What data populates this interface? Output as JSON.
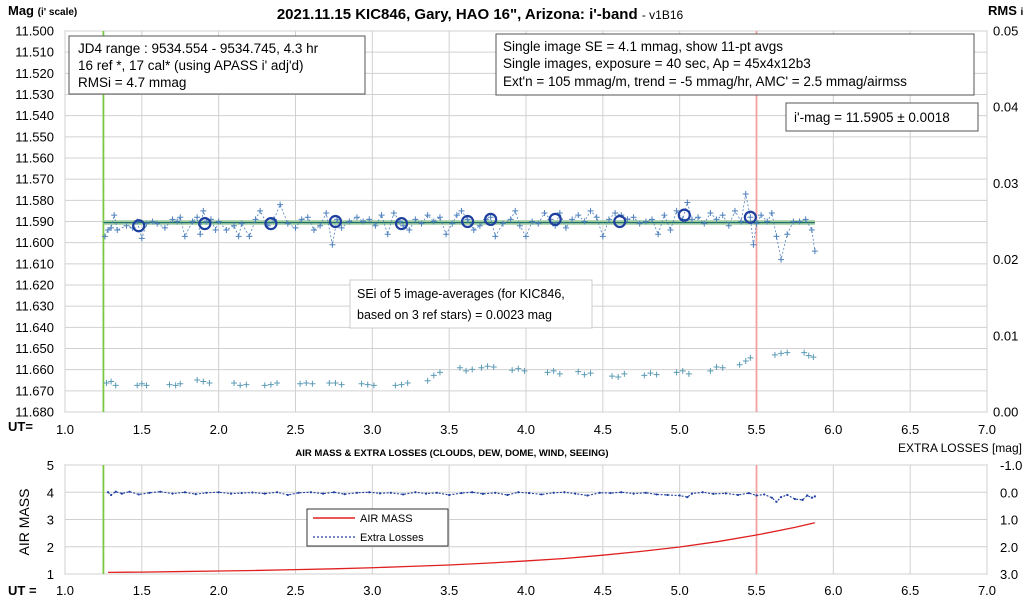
{
  "chart_data": [
    {
      "type": "scatter",
      "title": "2021.11.15 KIC846, Gary, HAO 16\", Arizona: i'-band",
      "title_suffix": "- v1B16",
      "ylabel": "Mag",
      "ylabel_small": "(i' scale)",
      "y2label": "RMS",
      "y2label_small": "i",
      "xlabel": "UT=",
      "xlim": [
        1.0,
        7.0
      ],
      "ylim": [
        11.5,
        11.68
      ],
      "ylim_reversed": true,
      "y2lim": [
        0.0,
        0.05
      ],
      "x_ticks": [
        "1.0",
        "1.5",
        "2.0",
        "2.5",
        "3.0",
        "3.5",
        "4.0",
        "4.5",
        "5.0",
        "5.5",
        "6.0",
        "6.5",
        "7.0"
      ],
      "y_ticks": [
        "11.500",
        "11.510",
        "11.520",
        "11.530",
        "11.540",
        "11.550",
        "11.560",
        "11.570",
        "11.580",
        "11.590",
        "11.600",
        "11.610",
        "11.620",
        "11.630",
        "11.640",
        "11.650",
        "11.660",
        "11.670",
        "11.680"
      ],
      "y2_ticks": [
        "0.05",
        "0.04",
        "0.03",
        "0.02",
        "0.01",
        "0.00"
      ],
      "grid": true,
      "vertical_lines": [
        {
          "x": 1.25,
          "color": "#7ac943"
        },
        {
          "x": 5.5,
          "color": "#f4a0a0"
        }
      ],
      "annotations": {
        "left_box": [
          "JD4 range : 9534.554 - 9534.745, 4.3  hr",
          "16 ref *, 17 cal* (using APASS i' adj'd)",
          "RMSi = 4.7 mmag"
        ],
        "right_box": [
          "Single image SE = 4.1 mmag, show 11-pt avgs",
          "Single images, exposure = 40 sec, Ap = 45x4x12b3",
          "Ext'n = 105 mmag/m, trend = -5 mmag/hr, AMC' = 2.5 mmag/airmss"
        ],
        "mag_box": "i'-mag = 11.5905 ± 0.0018",
        "sei_box": [
          "SEi of 5 image-averages (for KIC846,",
          "based on 3 ref stars) = 0.0023 mag"
        ]
      },
      "fit_line": {
        "x": [
          1.25,
          5.88
        ],
        "y": [
          11.5905,
          11.5905
        ],
        "colors": [
          "#9bc99b",
          "#1f6f6f"
        ]
      },
      "series": [
        {
          "name": "single images",
          "color": "#4f81bd",
          "marker": "+",
          "x": [
            1.26,
            1.28,
            1.3,
            1.32,
            1.34,
            1.4,
            1.44,
            1.47,
            1.5,
            1.53,
            1.57,
            1.6,
            1.65,
            1.7,
            1.73,
            1.75,
            1.78,
            1.83,
            1.86,
            1.88,
            1.9,
            1.92,
            1.95,
            1.98,
            2.0,
            2.05,
            2.1,
            2.13,
            2.15,
            2.2,
            2.24,
            2.27,
            2.32,
            2.36,
            2.4,
            2.45,
            2.5,
            2.54,
            2.58,
            2.62,
            2.66,
            2.7,
            2.74,
            2.77,
            2.8,
            2.85,
            2.9,
            2.94,
            2.98,
            3.02,
            3.06,
            3.1,
            3.14,
            3.18,
            3.2,
            3.24,
            3.28,
            3.32,
            3.36,
            3.4,
            3.44,
            3.48,
            3.52,
            3.55,
            3.58,
            3.62,
            3.66,
            3.7,
            3.74,
            3.77,
            3.8,
            3.85,
            3.9,
            3.93,
            3.96,
            4.0,
            4.04,
            4.08,
            4.12,
            4.16,
            4.19,
            4.22,
            4.26,
            4.3,
            4.34,
            4.38,
            4.42,
            4.46,
            4.5,
            4.54,
            4.58,
            4.62,
            4.66,
            4.7,
            4.74,
            4.78,
            4.82,
            4.86,
            4.9,
            4.94,
            4.98,
            5.02,
            5.05,
            5.08,
            5.12,
            5.16,
            5.2,
            5.24,
            5.28,
            5.32,
            5.36,
            5.4,
            5.43,
            5.46,
            5.48,
            5.5,
            5.53,
            5.57,
            5.6,
            5.63,
            5.66,
            5.7,
            5.74,
            5.78,
            5.82,
            5.86,
            5.88
          ],
          "y": [
            11.597,
            11.594,
            11.593,
            11.587,
            11.594,
            11.592,
            11.593,
            11.59,
            11.598,
            11.591,
            11.59,
            11.591,
            11.593,
            11.589,
            11.59,
            11.588,
            11.597,
            11.59,
            11.588,
            11.596,
            11.585,
            11.59,
            11.589,
            11.594,
            11.59,
            11.594,
            11.592,
            11.597,
            11.591,
            11.597,
            11.589,
            11.585,
            11.592,
            11.589,
            11.582,
            11.591,
            11.593,
            11.589,
            11.588,
            11.594,
            11.592,
            11.586,
            11.601,
            11.589,
            11.593,
            11.59,
            11.588,
            11.59,
            11.589,
            11.592,
            11.587,
            11.596,
            11.586,
            11.59,
            11.592,
            11.594,
            11.589,
            11.591,
            11.587,
            11.59,
            11.588,
            11.596,
            11.591,
            11.587,
            11.585,
            11.589,
            11.594,
            11.592,
            11.589,
            11.588,
            11.597,
            11.591,
            11.589,
            11.585,
            11.592,
            11.597,
            11.59,
            11.591,
            11.586,
            11.589,
            11.592,
            11.586,
            11.593,
            11.589,
            11.587,
            11.59,
            11.585,
            11.588,
            11.597,
            11.589,
            11.586,
            11.587,
            11.589,
            11.588,
            11.591,
            11.59,
            11.589,
            11.596,
            11.587,
            11.594,
            11.585,
            11.589,
            11.581,
            11.589,
            11.588,
            11.591,
            11.586,
            11.589,
            11.587,
            11.592,
            11.585,
            11.59,
            11.577,
            11.588,
            11.601,
            11.591,
            11.587,
            11.59,
            11.586,
            11.597,
            11.608,
            11.596,
            11.59,
            11.59,
            11.589,
            11.594,
            11.604
          ]
        },
        {
          "name": "11-pt averages",
          "color": "#1f3f9f",
          "marker": "o",
          "x": [
            1.48,
            1.91,
            2.34,
            2.76,
            3.19,
            3.62,
            3.77,
            4.19,
            4.61,
            5.03,
            5.46
          ],
          "y": [
            11.592,
            11.591,
            11.591,
            11.59,
            11.591,
            11.59,
            11.589,
            11.589,
            11.59,
            11.587,
            11.588
          ]
        },
        {
          "name": "RMS",
          "color": "#5b9bb5",
          "marker": "+",
          "axis": "y2",
          "x": [
            1.27,
            1.3,
            1.33,
            1.47,
            1.5,
            1.53,
            1.68,
            1.72,
            1.75,
            1.86,
            1.9,
            1.94,
            2.1,
            2.14,
            2.18,
            2.3,
            2.34,
            2.38,
            2.53,
            2.57,
            2.61,
            2.72,
            2.76,
            2.8,
            2.93,
            2.97,
            3.01,
            3.15,
            3.19,
            3.23,
            3.36,
            3.4,
            3.44,
            3.57,
            3.61,
            3.65,
            3.71,
            3.75,
            3.79,
            3.91,
            3.95,
            3.99,
            4.14,
            4.18,
            4.22,
            4.34,
            4.38,
            4.42,
            4.56,
            4.6,
            4.64,
            4.77,
            4.81,
            4.85,
            4.98,
            5.02,
            5.06,
            5.2,
            5.24,
            5.28,
            5.39,
            5.43,
            5.46,
            5.62,
            5.66,
            5.7,
            5.81,
            5.84,
            5.87
          ],
          "y": [
            0.0038,
            0.004,
            0.0035,
            0.0035,
            0.0037,
            0.0035,
            0.0036,
            0.0035,
            0.0037,
            0.0042,
            0.004,
            0.0038,
            0.0038,
            0.0035,
            0.0036,
            0.0035,
            0.0036,
            0.0038,
            0.0037,
            0.0038,
            0.0037,
            0.0038,
            0.0038,
            0.0036,
            0.0037,
            0.0036,
            0.0035,
            0.0035,
            0.0036,
            0.0038,
            0.0041,
            0.0048,
            0.0052,
            0.0058,
            0.0054,
            0.0056,
            0.0058,
            0.006,
            0.0059,
            0.0055,
            0.0057,
            0.0054,
            0.0052,
            0.0054,
            0.005,
            0.0053,
            0.0049,
            0.0051,
            0.0047,
            0.0046,
            0.005,
            0.0048,
            0.0051,
            0.0049,
            0.0052,
            0.0054,
            0.005,
            0.0054,
            0.0059,
            0.0058,
            0.0062,
            0.0067,
            0.0071,
            0.0075,
            0.0077,
            0.0078,
            0.0078,
            0.0074,
            0.0072
          ]
        }
      ]
    },
    {
      "type": "line",
      "title": "AIR MASS & EXTRA LOSSES (CLOUDS, DEW, DOME, WIND, SEEING)",
      "ylabel": "AIR MASS",
      "y2label": "EXTRA LOSSES [mag]",
      "xlabel": "UT =",
      "xlim": [
        1.0,
        7.0
      ],
      "ylim": [
        1,
        5
      ],
      "y2lim": [
        -1.0,
        3.0
      ],
      "y2_reversed": true,
      "x_ticks": [
        "1.0",
        "1.5",
        "2.0",
        "2.5",
        "3.0",
        "3.5",
        "4.0",
        "4.5",
        "5.0",
        "5.5",
        "6.0",
        "6.5",
        "7.0"
      ],
      "y_ticks": [
        "5",
        "4",
        "3",
        "2",
        "1"
      ],
      "y2_ticks": [
        "-1.0",
        "0.0",
        "1.0",
        "2.0",
        "3.0"
      ],
      "grid": true,
      "vertical_lines": [
        {
          "x": 1.25,
          "color": "#7ac943"
        },
        {
          "x": 5.5,
          "color": "#f4a0a0"
        }
      ],
      "legend": {
        "placement": "center-left",
        "entries": [
          "AIR MASS",
          "Extra Losses"
        ]
      },
      "series": [
        {
          "name": "AIR MASS",
          "color": "#e02020",
          "axis": "y",
          "x": [
            1.28,
            1.5,
            1.75,
            2.0,
            2.25,
            2.5,
            2.75,
            3.0,
            3.25,
            3.5,
            3.75,
            4.0,
            4.25,
            4.5,
            4.75,
            5.0,
            5.25,
            5.5,
            5.75,
            5.88
          ],
          "y": [
            1.06,
            1.07,
            1.09,
            1.11,
            1.13,
            1.16,
            1.19,
            1.23,
            1.28,
            1.33,
            1.4,
            1.48,
            1.57,
            1.69,
            1.83,
            1.99,
            2.19,
            2.43,
            2.71,
            2.88
          ]
        },
        {
          "name": "Extra Losses",
          "color": "#1f3fa0",
          "axis": "y2",
          "x": [
            1.28,
            1.3,
            1.33,
            1.37,
            1.42,
            1.48,
            1.55,
            1.62,
            1.7,
            1.78,
            1.85,
            1.92,
            2.0,
            2.08,
            2.15,
            2.22,
            2.3,
            2.38,
            2.45,
            2.52,
            2.6,
            2.68,
            2.75,
            2.82,
            2.9,
            2.98,
            3.05,
            3.12,
            3.2,
            3.28,
            3.35,
            3.42,
            3.5,
            3.58,
            3.65,
            3.72,
            3.8,
            3.88,
            3.95,
            4.02,
            4.1,
            4.18,
            4.25,
            4.32,
            4.4,
            4.48,
            4.55,
            4.62,
            4.7,
            4.78,
            4.85,
            4.92,
            5.0,
            5.05,
            5.08,
            5.15,
            5.22,
            5.3,
            5.38,
            5.45,
            5.5,
            5.55,
            5.6,
            5.63,
            5.66,
            5.7,
            5.75,
            5.8,
            5.83,
            5.86,
            5.88
          ],
          "y": [
            0.0,
            0.1,
            -0.02,
            0.05,
            -0.02,
            0.08,
            0.02,
            -0.02,
            0.05,
            0.0,
            0.07,
            0.02,
            0.0,
            0.05,
            0.03,
            0.01,
            0.05,
            0.0,
            0.1,
            0.02,
            0.0,
            0.05,
            0.0,
            0.07,
            0.02,
            0.0,
            0.04,
            0.02,
            0.08,
            0.0,
            0.05,
            0.02,
            0.1,
            0.03,
            0.0,
            0.06,
            0.02,
            0.1,
            0.0,
            0.03,
            0.08,
            0.02,
            0.0,
            0.05,
            0.12,
            0.02,
            0.03,
            0.0,
            0.05,
            0.02,
            0.08,
            0.1,
            0.12,
            0.18,
            0.05,
            0.0,
            0.06,
            0.04,
            0.1,
            0.03,
            0.12,
            0.08,
            0.2,
            0.35,
            0.18,
            0.1,
            0.25,
            0.28,
            0.12,
            0.2,
            0.15
          ]
        }
      ]
    }
  ]
}
